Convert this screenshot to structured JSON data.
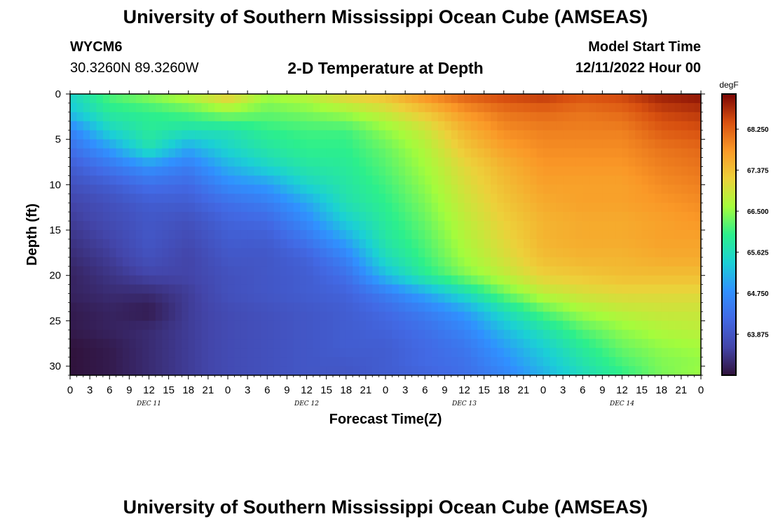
{
  "header": {
    "title": "University of Southern Mississippi Ocean Cube (AMSEAS)",
    "station": "WYCM6",
    "coordinates": "30.3260N  89.3260W",
    "subtitle": "2-D Temperature at Depth",
    "model_start_label": "Model Start Time",
    "model_start_value": "12/11/2022 Hour 00"
  },
  "footer": {
    "title": "University of Southern Mississippi Ocean Cube (AMSEAS)"
  },
  "chart_data": {
    "type": "heatmap",
    "title": "2-D Temperature at Depth",
    "xlabel": "Forecast Time(Z)",
    "ylabel": "Depth (ft)",
    "x_range_hours": [
      0,
      96
    ],
    "x_tick_labels": [
      "0",
      "3",
      "6",
      "9",
      "12",
      "15",
      "18",
      "21",
      "0",
      "3",
      "6",
      "9",
      "12",
      "15",
      "18",
      "21",
      "0",
      "3",
      "6",
      "9",
      "12",
      "15",
      "18",
      "21",
      "0",
      "3",
      "6",
      "9",
      "12",
      "15",
      "18",
      "21",
      "0"
    ],
    "day_labels": [
      "DEC 11",
      "DEC 12",
      "DEC 13",
      "DEC 14"
    ],
    "y_range_ft": [
      0,
      31
    ],
    "y_ticks": [
      0,
      5,
      10,
      15,
      20,
      25,
      30
    ],
    "colorbar": {
      "unit": "degF",
      "range": [
        63.0,
        69.0
      ],
      "ticks": [
        "68.250",
        "67.375",
        "66.500",
        "65.625",
        "64.750",
        "63.875"
      ],
      "tick_values": [
        68.25,
        67.375,
        66.5,
        65.625,
        64.75,
        63.875
      ]
    },
    "grid": {
      "time_hours": [
        0,
        6,
        12,
        18,
        24,
        30,
        36,
        42,
        48,
        54,
        60,
        66,
        72,
        78,
        84,
        90,
        96
      ],
      "depth_ft": [
        0,
        2,
        4,
        6,
        8,
        10,
        12,
        14,
        16,
        18,
        20,
        22,
        24,
        26,
        28,
        30,
        31
      ],
      "temperature_degF": [
        [
          65.5,
          66.2,
          66.5,
          66.8,
          67.3,
          66.6,
          66.8,
          67.2,
          67.4,
          67.9,
          68.3,
          68.5,
          68.6,
          68.4,
          68.5,
          68.8,
          68.9
        ],
        [
          65.3,
          65.9,
          66.0,
          66.2,
          66.5,
          66.3,
          66.4,
          66.6,
          66.9,
          67.3,
          67.8,
          68.1,
          68.2,
          68.1,
          68.2,
          68.5,
          68.6
        ],
        [
          64.6,
          65.5,
          65.9,
          65.7,
          65.7,
          66.0,
          66.1,
          66.1,
          66.5,
          66.9,
          67.5,
          67.9,
          68.0,
          68.0,
          68.0,
          68.3,
          68.4
        ],
        [
          64.3,
          64.9,
          65.7,
          65.0,
          65.5,
          65.8,
          66.0,
          66.0,
          66.3,
          66.7,
          67.3,
          67.7,
          67.9,
          67.9,
          67.9,
          68.1,
          68.2
        ],
        [
          64.0,
          64.4,
          64.8,
          64.5,
          65.1,
          65.5,
          65.8,
          65.9,
          66.2,
          66.6,
          67.1,
          67.5,
          67.8,
          67.8,
          67.8,
          68.0,
          68.1
        ],
        [
          63.8,
          64.0,
          64.3,
          64.2,
          64.7,
          64.9,
          65.5,
          65.8,
          66.1,
          66.5,
          67.0,
          67.4,
          67.7,
          67.7,
          67.7,
          67.9,
          68.0
        ],
        [
          63.6,
          63.8,
          64.0,
          64.0,
          64.3,
          64.5,
          65.0,
          65.7,
          66.0,
          66.4,
          66.9,
          67.3,
          67.6,
          67.7,
          67.7,
          67.8,
          67.9
        ],
        [
          63.5,
          63.7,
          63.9,
          63.8,
          64.1,
          64.2,
          64.7,
          65.4,
          65.9,
          66.3,
          66.8,
          67.2,
          67.5,
          67.6,
          67.6,
          67.7,
          67.8
        ],
        [
          63.4,
          63.6,
          63.9,
          63.7,
          64.0,
          64.0,
          64.4,
          65.0,
          65.8,
          66.2,
          66.7,
          67.1,
          67.5,
          67.6,
          67.6,
          67.7,
          67.7
        ],
        [
          63.3,
          63.5,
          63.8,
          63.6,
          63.9,
          63.9,
          64.1,
          64.6,
          65.6,
          66.1,
          66.6,
          67.0,
          67.4,
          67.5,
          67.5,
          67.6,
          67.6
        ],
        [
          63.2,
          63.4,
          63.6,
          63.6,
          63.8,
          63.9,
          64.0,
          64.3,
          65.2,
          65.9,
          66.4,
          66.8,
          67.2,
          67.3,
          67.4,
          67.4,
          67.4
        ],
        [
          63.2,
          63.3,
          63.3,
          63.5,
          63.8,
          63.9,
          64.0,
          64.1,
          64.5,
          65.0,
          65.6,
          66.3,
          66.8,
          67.0,
          67.1,
          67.1,
          67.1
        ],
        [
          63.1,
          63.2,
          63.1,
          63.5,
          63.7,
          63.8,
          63.9,
          64.0,
          64.2,
          64.5,
          64.9,
          65.6,
          66.2,
          66.6,
          66.8,
          66.9,
          66.9
        ],
        [
          63.1,
          63.2,
          63.3,
          63.5,
          63.7,
          63.8,
          63.9,
          64.0,
          64.1,
          64.3,
          64.6,
          65.2,
          65.7,
          66.2,
          66.5,
          66.7,
          66.8
        ],
        [
          63.0,
          63.1,
          63.3,
          63.5,
          63.7,
          63.8,
          63.9,
          64.0,
          64.0,
          64.2,
          64.4,
          64.9,
          65.4,
          65.9,
          66.3,
          66.5,
          66.6
        ],
        [
          63.0,
          63.1,
          63.3,
          63.5,
          63.7,
          63.8,
          63.9,
          63.9,
          64.0,
          64.2,
          64.3,
          64.7,
          65.2,
          65.7,
          66.1,
          66.4,
          66.5
        ],
        [
          63.0,
          63.1,
          63.3,
          63.5,
          63.7,
          63.8,
          63.9,
          63.9,
          64.0,
          64.1,
          64.3,
          64.6,
          65.1,
          65.6,
          66.0,
          66.4,
          66.6
        ]
      ]
    }
  }
}
